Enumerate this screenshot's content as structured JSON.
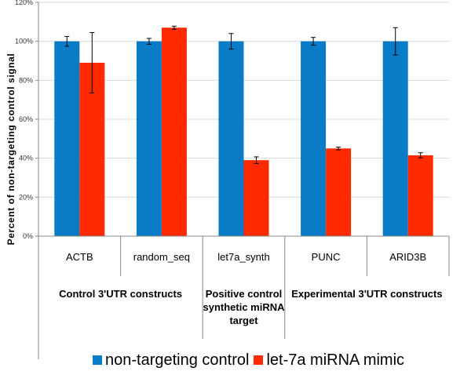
{
  "chart_data": {
    "type": "bar",
    "ylabel": "Percent of non-targeting control signal",
    "ylim": [
      0,
      120
    ],
    "yticks": [
      0,
      20,
      40,
      60,
      80,
      100,
      120
    ],
    "ytick_labels": [
      "0%",
      "20%",
      "40%",
      "60%",
      "80%",
      "100%",
      "120%"
    ],
    "categories": [
      "ACTB",
      "random_seq",
      "let7a_synth",
      "PUNC",
      "ARID3B"
    ],
    "groups": [
      {
        "lines": [
          "Control 3'UTR constructs"
        ],
        "span": 2
      },
      {
        "lines": [
          "Positive control",
          "synthetic miRNA",
          "target"
        ],
        "span": 1
      },
      {
        "lines": [
          "Experimental 3'UTR constructs"
        ],
        "span": 2
      }
    ],
    "series": [
      {
        "name": "non-targeting control",
        "color": "#0a7bc7",
        "values": [
          100,
          100,
          100,
          100,
          100
        ],
        "errors": [
          2.5,
          1.5,
          4,
          2,
          7
        ]
      },
      {
        "name": "let-7a miRNA mimic",
        "color": "#ff2a00",
        "values": [
          89,
          107,
          39,
          45,
          41.5
        ],
        "errors": [
          15.5,
          0.8,
          1.7,
          0.7,
          1.3
        ]
      }
    ],
    "legend_position": "bottom"
  }
}
